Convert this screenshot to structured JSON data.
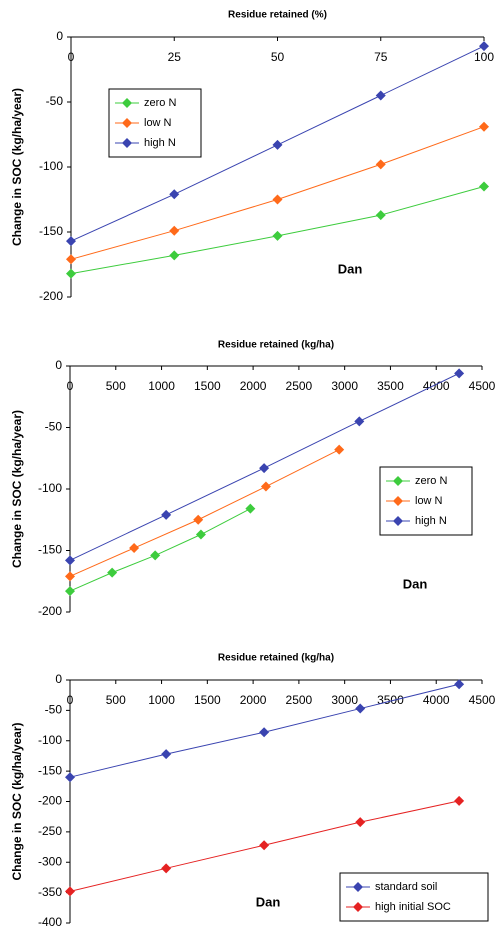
{
  "chart_data": [
    {
      "type": "line",
      "title": "Residue retained (%)",
      "y_label": "Change in SOC (kg/ha/year)",
      "annotation": "Dan",
      "x": [
        0,
        25,
        50,
        75,
        100
      ],
      "xlim": [
        0,
        100
      ],
      "xticks": [
        0,
        25,
        50,
        75,
        100
      ],
      "ylim": [
        -200,
        0
      ],
      "yticks": [
        -200,
        -150,
        -100,
        -50,
        0
      ],
      "legend": "upper left",
      "series": [
        {
          "name": "zero N",
          "color": "#3dcc3d",
          "values": [
            -182,
            -168,
            -153,
            -137,
            -115
          ]
        },
        {
          "name": "low N",
          "color": "#ff6a1a",
          "values": [
            -171,
            -149,
            -125,
            -98,
            -69
          ]
        },
        {
          "name": "high N",
          "color": "#3a44b0",
          "values": [
            -157,
            -121,
            -83,
            -45,
            -7
          ]
        }
      ]
    },
    {
      "type": "line",
      "title": "Residue retained (kg/ha)",
      "y_label": "Change in SOC (kg/ha/year)",
      "annotation": "Dan",
      "xlim": [
        0,
        4500
      ],
      "xticks": [
        0,
        500,
        1000,
        1500,
        2000,
        2500,
        3000,
        3500,
        4000,
        4500
      ],
      "ylim": [
        -200,
        0
      ],
      "yticks": [
        -200,
        -150,
        -100,
        -50,
        0
      ],
      "legend": "center right",
      "series": [
        {
          "name": "zero N",
          "color": "#3dcc3d",
          "x": [
            0,
            460,
            930,
            1430,
            1970
          ],
          "values": [
            -183,
            -168,
            -154,
            -137,
            -116
          ]
        },
        {
          "name": "low N",
          "color": "#ff6a1a",
          "x": [
            0,
            700,
            1400,
            2140,
            2940
          ],
          "values": [
            -171,
            -148,
            -125,
            -98,
            -68
          ]
        },
        {
          "name": "high N",
          "color": "#3a44b0",
          "x": [
            0,
            1050,
            2120,
            3160,
            4250
          ],
          "values": [
            -158,
            -121,
            -83,
            -45,
            -6
          ]
        }
      ]
    },
    {
      "type": "line",
      "title": "Residue retained (kg/ha)",
      "y_label": "Change in SOC (kg/ha/year)",
      "annotation": "Dan",
      "xlim": [
        0,
        4500
      ],
      "xticks": [
        0,
        500,
        1000,
        1500,
        2000,
        2500,
        3000,
        3500,
        4000,
        4500
      ],
      "ylim": [
        -400,
        0
      ],
      "yticks": [
        -400,
        -350,
        -300,
        -250,
        -200,
        -150,
        -100,
        -50,
        0
      ],
      "legend": "lower right",
      "series": [
        {
          "name": "standard soil",
          "color": "#3a44b0",
          "x": [
            0,
            1050,
            2120,
            3170,
            4250
          ],
          "values": [
            -160,
            -122,
            -86,
            -47,
            -7
          ]
        },
        {
          "name": "high initial SOC",
          "color": "#e52222",
          "x": [
            0,
            1050,
            2120,
            3170,
            4250
          ],
          "values": [
            -348,
            -310,
            -272,
            -234,
            -199
          ]
        }
      ]
    }
  ]
}
